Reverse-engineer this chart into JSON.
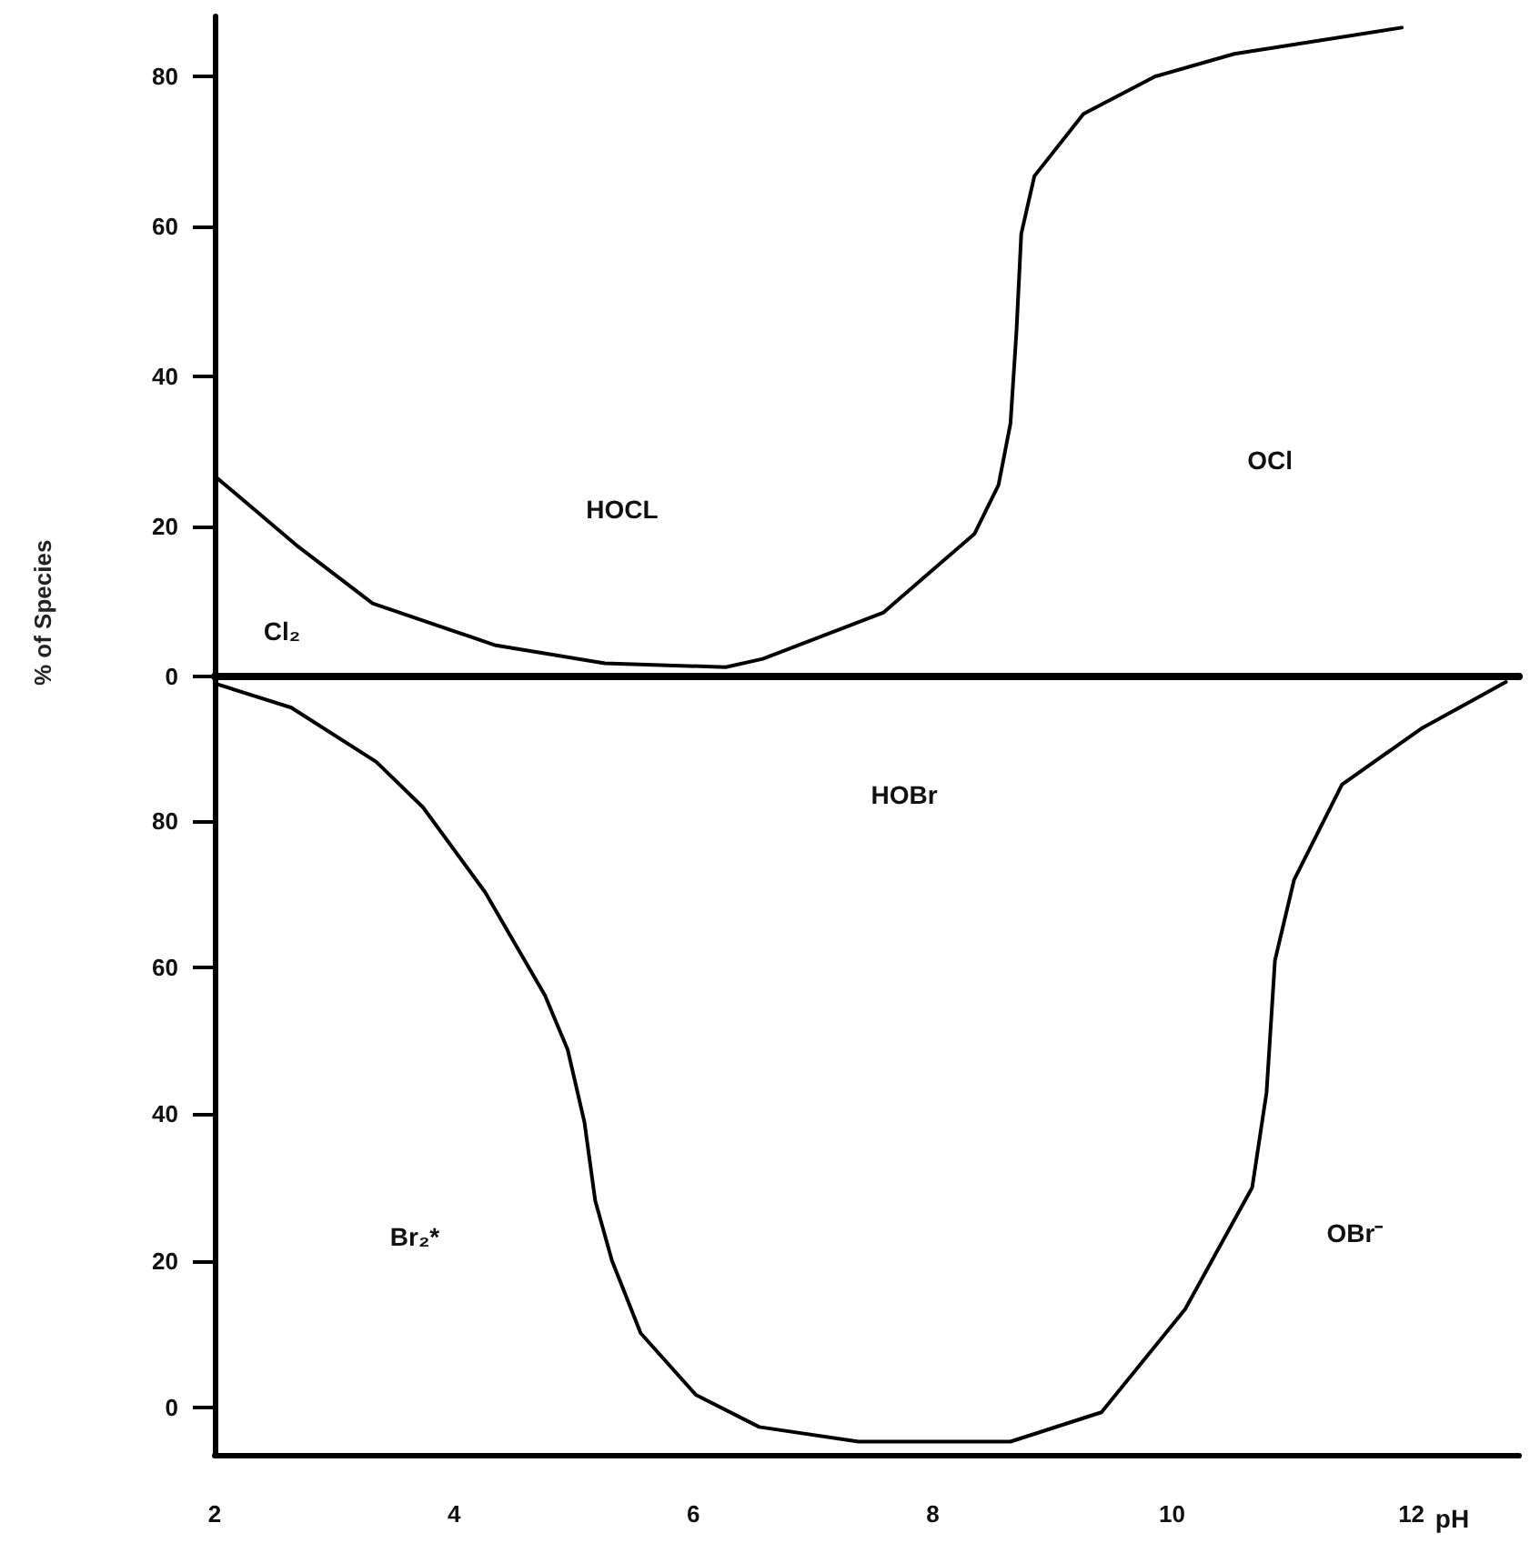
{
  "chart_data": [
    {
      "type": "line",
      "ylabel": "% of Species",
      "xlim": [
        2,
        12.9
      ],
      "xticks": [
        2,
        4,
        6,
        8,
        10,
        12
      ],
      "ylim": [
        0,
        88
      ],
      "yticks": [
        0,
        20,
        40,
        60,
        80
      ],
      "tick_labels": "y",
      "grid": false,
      "marker": "none",
      "line_style": "solid",
      "series": [
        {
          "color": "#000000",
          "x": [
            2.0,
            2.68,
            3.32,
            4.35,
            5.26,
            6.27,
            6.58,
            7.59,
            8.35,
            8.55,
            8.65,
            8.7,
            8.74,
            8.85,
            9.26,
            9.86,
            10.52,
            11.92
          ],
          "values": [
            26.7,
            17.5,
            9.7,
            4.1,
            1.7,
            1.2,
            2.3,
            8.5,
            19,
            25.5,
            33.7,
            46,
            59,
            66.7,
            75,
            80,
            83,
            86.5
          ]
        }
      ],
      "annotations": [
        "HOCL",
        "OCl",
        "Cl₂"
      ]
    },
    {
      "type": "line",
      "xlabel": "pH",
      "xlim": [
        2,
        12.9
      ],
      "xticks": [
        2,
        4,
        6,
        8,
        10,
        12
      ],
      "ylim": [
        -6.5,
        99.5
      ],
      "yticks": [
        0,
        20,
        40,
        60,
        80
      ],
      "grid": false,
      "marker": "none",
      "line_style": "solid",
      "series": [
        {
          "color": "#000000",
          "x": [
            2.0,
            2.64,
            3.35,
            3.74,
            4.26,
            4.76,
            4.95,
            5.09,
            5.18,
            5.32,
            5.56,
            6.02,
            6.55,
            7.38,
            8.65,
            9.41,
            10.11,
            10.67,
            10.79,
            10.86,
            11.02,
            11.42,
            12.08,
            12.79
          ],
          "values": [
            98.8,
            95.5,
            88.1,
            81.9,
            70.3,
            56.2,
            48.8,
            38.9,
            28.2,
            20,
            10.1,
            1.7,
            -2.7,
            -4.7,
            -4.7,
            -0.7,
            13.4,
            30,
            43,
            61,
            72,
            85,
            92.6,
            99
          ]
        }
      ],
      "annotations": [
        "HOBr",
        "Br₂*",
        "OBr⁻"
      ]
    }
  ]
}
